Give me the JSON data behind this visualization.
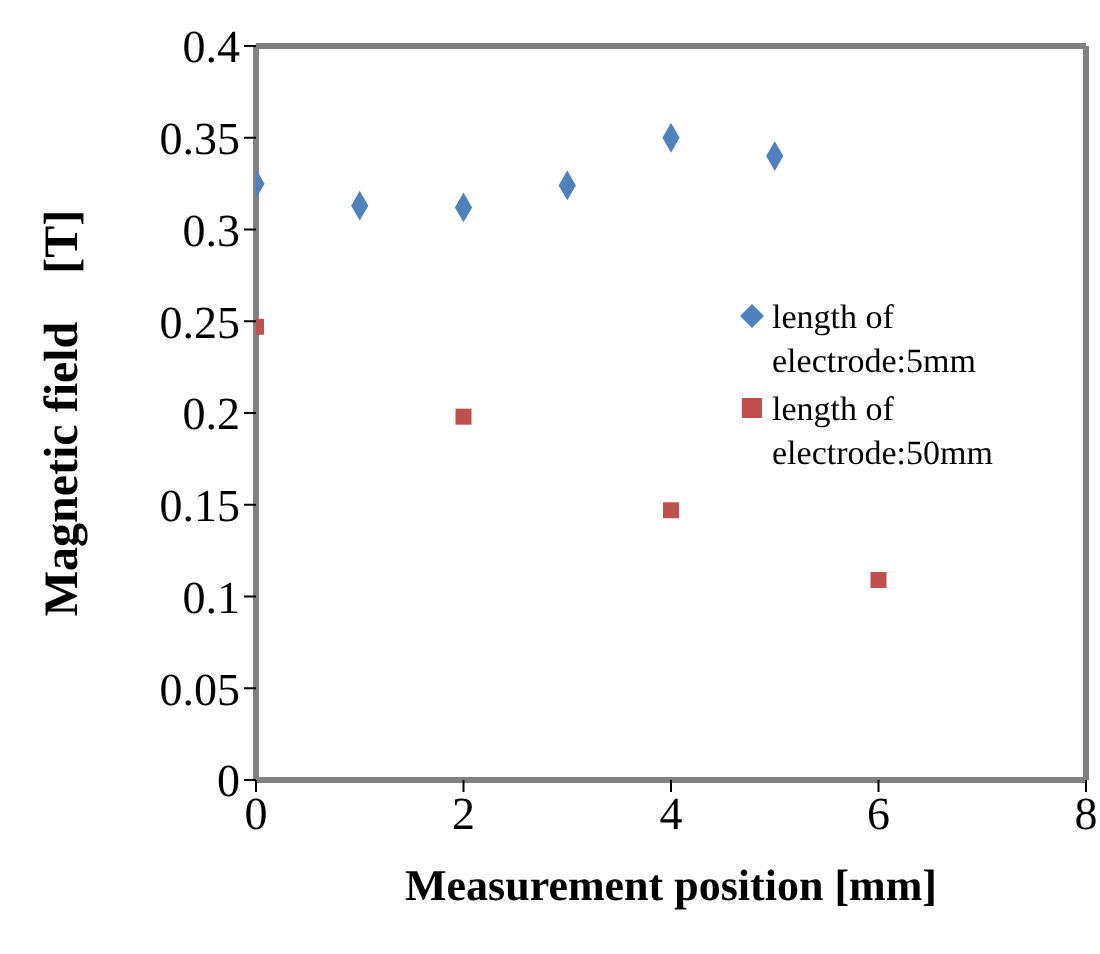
{
  "chart_data": {
    "type": "scatter",
    "xlabel": "Measurement position [mm]",
    "ylabel": "Magnetic field　[T]",
    "xlim": [
      0,
      8
    ],
    "xticks": [
      0,
      2,
      4,
      6,
      8
    ],
    "ylim": [
      0,
      0.4
    ],
    "yticks": [
      0,
      0.05,
      0.1,
      0.15,
      0.2,
      0.25,
      0.3,
      0.35,
      0.4
    ],
    "grid": false,
    "legend": "right",
    "series": [
      {
        "name": "length of electrode:5mm",
        "color": "#4f81bd",
        "marker": "diamond",
        "x": [
          0,
          1,
          2,
          3,
          4,
          5
        ],
        "values": [
          0.325,
          0.313,
          0.312,
          0.324,
          0.35,
          0.34
        ]
      },
      {
        "name": "length of electrode:50mm",
        "color": "#c0504d",
        "marker": "square",
        "x": [
          0,
          2,
          4,
          6
        ],
        "values": [
          0.247,
          0.198,
          0.147,
          0.109
        ]
      }
    ]
  }
}
